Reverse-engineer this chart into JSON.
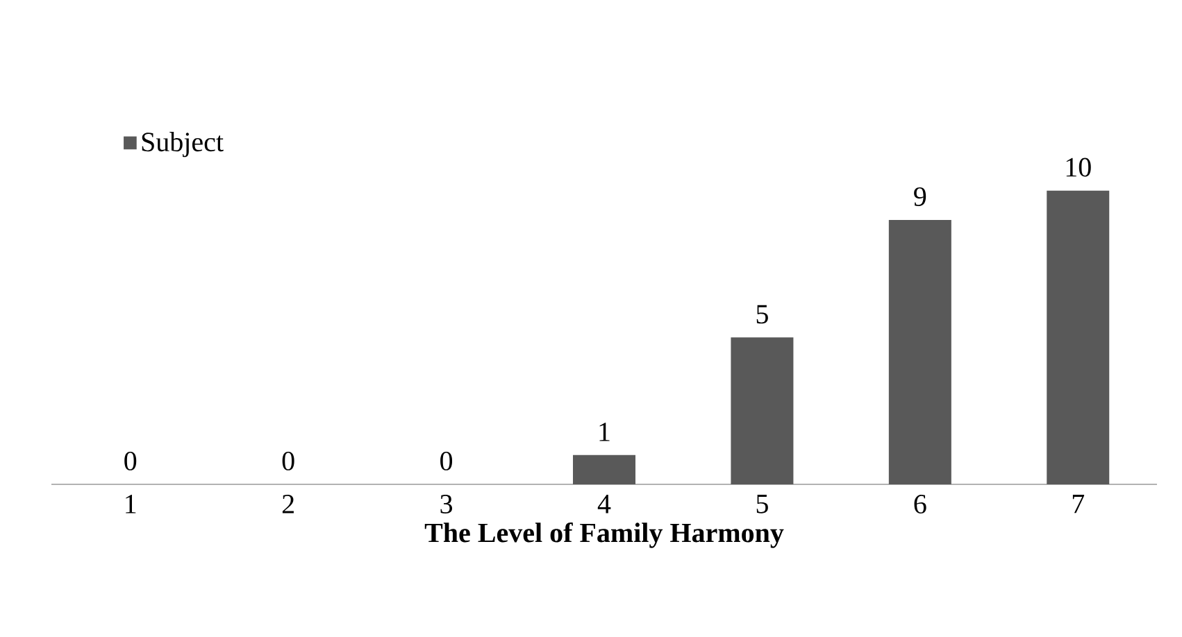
{
  "chart_data": {
    "type": "bar",
    "xlabel": "The Level of Family Harmony",
    "categories": [
      "1",
      "2",
      "3",
      "4",
      "5",
      "6",
      "7"
    ],
    "series": [
      {
        "name": "Subject",
        "color": "#595959",
        "values": [
          0,
          0,
          0,
          1,
          5,
          9,
          10
        ]
      }
    ],
    "data_labels": true,
    "legend": "top left",
    "grid": false
  }
}
